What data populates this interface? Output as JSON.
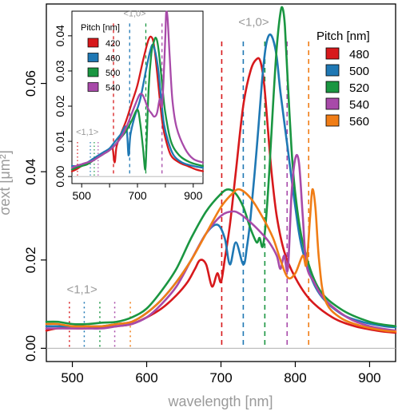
{
  "chart_data": [
    {
      "type": "line",
      "xlabel": "wavelength [nm]",
      "ylabel": "σext [μm²]",
      "xlim": [
        465,
        935
      ],
      "ylim": [
        -0.003,
        0.078
      ],
      "xticks": [
        500,
        600,
        700,
        800,
        900
      ],
      "yticks": [
        0.0,
        0.02,
        0.04,
        0.06
      ],
      "ytick_labels": [
        "0.00",
        "0.02",
        "0.04",
        "0.06"
      ],
      "legend": {
        "title": "Pitch [nm]",
        "placement": "top-right"
      },
      "annotations": [
        {
          "text": "<1,0>",
          "x": 744,
          "y": 0.073
        },
        {
          "text": "<1,1>",
          "x": 513,
          "y": 0.0125
        }
      ],
      "series": [
        {
          "name": "480",
          "color": "#d7191c",
          "x": [
            465,
            480,
            500,
            520,
            540,
            560,
            580,
            600,
            620,
            640,
            655,
            665,
            672,
            680,
            688,
            695,
            700,
            705,
            712,
            720,
            730,
            740,
            748,
            753,
            758,
            763,
            768,
            775,
            785,
            800,
            820,
            850,
            880,
            910,
            935
          ],
          "y": [
            0.004,
            0.0045,
            0.0045,
            0.0045,
            0.0048,
            0.005,
            0.0055,
            0.007,
            0.009,
            0.012,
            0.015,
            0.018,
            0.02,
            0.019,
            0.014,
            0.017,
            0.015,
            0.02,
            0.028,
            0.04,
            0.055,
            0.063,
            0.0655,
            0.065,
            0.06,
            0.05,
            0.04,
            0.03,
            0.022,
            0.016,
            0.011,
            0.007,
            0.005,
            0.004,
            0.0035
          ]
        },
        {
          "name": "500",
          "color": "#1f78b4",
          "x": [
            465,
            480,
            500,
            520,
            540,
            560,
            580,
            600,
            620,
            640,
            660,
            680,
            695,
            705,
            712,
            720,
            730,
            735,
            740,
            748,
            755,
            760,
            765,
            770,
            775,
            780,
            790,
            800,
            810,
            830,
            860,
            890,
            920,
            935
          ],
          "y": [
            0.005,
            0.005,
            0.005,
            0.005,
            0.005,
            0.0055,
            0.006,
            0.008,
            0.011,
            0.015,
            0.02,
            0.026,
            0.028,
            0.025,
            0.019,
            0.024,
            0.019,
            0.023,
            0.03,
            0.045,
            0.06,
            0.068,
            0.071,
            0.07,
            0.066,
            0.058,
            0.045,
            0.032,
            0.022,
            0.013,
            0.008,
            0.006,
            0.005,
            0.0048
          ]
        },
        {
          "name": "520",
          "color": "#1a9641",
          "x": [
            465,
            480,
            500,
            520,
            540,
            560,
            580,
            600,
            620,
            640,
            660,
            680,
            700,
            710,
            720,
            730,
            740,
            748,
            752,
            756,
            760,
            765,
            770,
            775,
            780,
            783,
            786,
            790,
            795,
            800,
            810,
            830,
            860,
            900,
            935
          ],
          "y": [
            0.006,
            0.006,
            0.0055,
            0.0055,
            0.0058,
            0.006,
            0.007,
            0.009,
            0.013,
            0.018,
            0.025,
            0.031,
            0.035,
            0.036,
            0.035,
            0.032,
            0.027,
            0.024,
            0.025,
            0.023,
            0.028,
            0.04,
            0.055,
            0.068,
            0.076,
            0.077,
            0.073,
            0.06,
            0.045,
            0.035,
            0.024,
            0.014,
            0.009,
            0.006,
            0.005
          ]
        },
        {
          "name": "540",
          "color": "#a84aa9",
          "x": [
            465,
            480,
            500,
            520,
            540,
            560,
            580,
            600,
            620,
            640,
            660,
            680,
            700,
            715,
            725,
            740,
            755,
            765,
            775,
            780,
            785,
            790,
            795,
            800,
            805,
            810,
            815,
            825,
            840,
            870,
            900,
            935
          ],
          "y": [
            0.0045,
            0.0045,
            0.0045,
            0.0045,
            0.0045,
            0.005,
            0.0055,
            0.007,
            0.01,
            0.014,
            0.02,
            0.026,
            0.03,
            0.031,
            0.0305,
            0.0285,
            0.026,
            0.024,
            0.021,
            0.018,
            0.021,
            0.018,
            0.035,
            0.043,
            0.042,
            0.03,
            0.019,
            0.015,
            0.011,
            0.007,
            0.005,
            0.004
          ]
        },
        {
          "name": "560",
          "color": "#f07d16",
          "x": [
            465,
            480,
            500,
            520,
            540,
            560,
            580,
            600,
            620,
            640,
            660,
            680,
            700,
            715,
            725,
            740,
            755,
            770,
            780,
            790,
            800,
            810,
            815,
            820,
            823,
            827,
            832,
            840,
            860,
            890,
            920,
            935
          ],
          "y": [
            0.0055,
            0.0055,
            0.005,
            0.005,
            0.005,
            0.0055,
            0.006,
            0.008,
            0.011,
            0.015,
            0.02,
            0.026,
            0.032,
            0.035,
            0.036,
            0.034,
            0.03,
            0.025,
            0.02,
            0.016,
            0.017,
            0.021,
            0.019,
            0.03,
            0.036,
            0.032,
            0.02,
            0.011,
            0.007,
            0.005,
            0.004,
            0.0038
          ]
        }
      ],
      "vlines_dashed": [
        {
          "series": "480",
          "x": 701
        },
        {
          "series": "500",
          "x": 730
        },
        {
          "series": "520",
          "x": 759
        },
        {
          "series": "540",
          "x": 789
        },
        {
          "series": "560",
          "x": 818
        }
      ],
      "vlines_dotted": [
        {
          "series": "480",
          "x": 496
        },
        {
          "series": "500",
          "x": 516
        },
        {
          "series": "520",
          "x": 537
        },
        {
          "series": "540",
          "x": 557
        },
        {
          "series": "560",
          "x": 578
        }
      ]
    },
    {
      "type": "line",
      "inset": true,
      "xlim": [
        465,
        935
      ],
      "ylim": [
        -0.002,
        0.047
      ],
      "xticks": [
        500,
        700,
        900
      ],
      "minor_xticks": [
        600,
        800
      ],
      "yticks": [
        0.0,
        0.01,
        0.02,
        0.03,
        0.04
      ],
      "ytick_labels": [
        "0.00",
        "0.01",
        "0.02",
        "0.03",
        "0.04"
      ],
      "legend": {
        "title": "Pitch [nm]",
        "placement": "top-left"
      },
      "annotations": [
        {
          "text": "<1,0>",
          "x": 690,
          "y": 0.0455
        },
        {
          "text": "<1,1>",
          "x": 520,
          "y": 0.0118
        }
      ],
      "series": [
        {
          "name": "420",
          "color": "#d7191c",
          "x": [
            465,
            480,
            500,
            520,
            540,
            560,
            580,
            600,
            610,
            618,
            625,
            640,
            660,
            680,
            700,
            720,
            740,
            752,
            760,
            770,
            780,
            790,
            800,
            820,
            850,
            880,
            910,
            935
          ],
          "y": [
            0.0015,
            0.002,
            0.003,
            0.0035,
            0.0045,
            0.0055,
            0.0065,
            0.0075,
            0.0085,
            0.004,
            0.0085,
            0.012,
            0.016,
            0.021,
            0.026,
            0.033,
            0.039,
            0.0395,
            0.037,
            0.03,
            0.022,
            0.015,
            0.011,
            0.006,
            0.004,
            0.003,
            0.002,
            0.0015
          ]
        },
        {
          "name": "460",
          "color": "#1f78b4",
          "x": [
            465,
            480,
            500,
            520,
            540,
            560,
            580,
            600,
            620,
            640,
            660,
            668,
            675,
            690,
            710,
            730,
            745,
            755,
            765,
            775,
            785,
            795,
            810,
            830,
            860,
            900,
            935
          ],
          "y": [
            0.003,
            0.003,
            0.0035,
            0.004,
            0.005,
            0.006,
            0.007,
            0.008,
            0.01,
            0.012,
            0.014,
            0.006,
            0.012,
            0.017,
            0.022,
            0.03,
            0.0355,
            0.0375,
            0.035,
            0.03,
            0.022,
            0.015,
            0.01,
            0.006,
            0.004,
            0.003,
            0.0025
          ]
        },
        {
          "name": "500",
          "color": "#1a9641",
          "x": [
            465,
            480,
            500,
            520,
            540,
            560,
            580,
            600,
            620,
            640,
            660,
            680,
            700,
            710,
            720,
            728,
            733,
            740,
            750,
            758,
            765,
            772,
            780,
            790,
            800,
            820,
            850,
            890,
            935
          ],
          "y": [
            0.002,
            0.0025,
            0.003,
            0.0035,
            0.0045,
            0.0055,
            0.0065,
            0.0075,
            0.009,
            0.011,
            0.013,
            0.016,
            0.019,
            0.015,
            0.008,
            0.002,
            0.01,
            0.025,
            0.035,
            0.038,
            0.0395,
            0.038,
            0.033,
            0.025,
            0.018,
            0.01,
            0.006,
            0.004,
            0.003
          ]
        },
        {
          "name": "540",
          "color": "#a84aa9",
          "x": [
            465,
            480,
            500,
            520,
            540,
            560,
            580,
            600,
            620,
            640,
            660,
            680,
            700,
            710,
            720,
            730,
            740,
            750,
            760,
            770,
            780,
            788,
            795,
            800,
            803,
            808,
            815,
            825,
            840,
            870,
            900,
            935
          ],
          "y": [
            0.0025,
            0.003,
            0.0035,
            0.004,
            0.0045,
            0.0055,
            0.0065,
            0.0075,
            0.009,
            0.011,
            0.014,
            0.018,
            0.022,
            0.0235,
            0.023,
            0.021,
            0.019,
            0.018,
            0.017,
            0.018,
            0.022,
            0.02,
            0.03,
            0.04,
            0.0465,
            0.045,
            0.035,
            0.022,
            0.014,
            0.008,
            0.005,
            0.004
          ]
        }
      ],
      "vlines_dashed": [
        {
          "series": "420",
          "x": 614
        },
        {
          "series": "460",
          "x": 672
        },
        {
          "series": "500",
          "x": 730
        },
        {
          "series": "540",
          "x": 788
        }
      ],
      "vlines_dotted": [
        {
          "series": "420",
          "x": 485
        },
        {
          "series": "460",
          "x": 531
        },
        {
          "series": "500",
          "x": 545
        },
        {
          "series": "540",
          "x": 559
        }
      ]
    }
  ]
}
